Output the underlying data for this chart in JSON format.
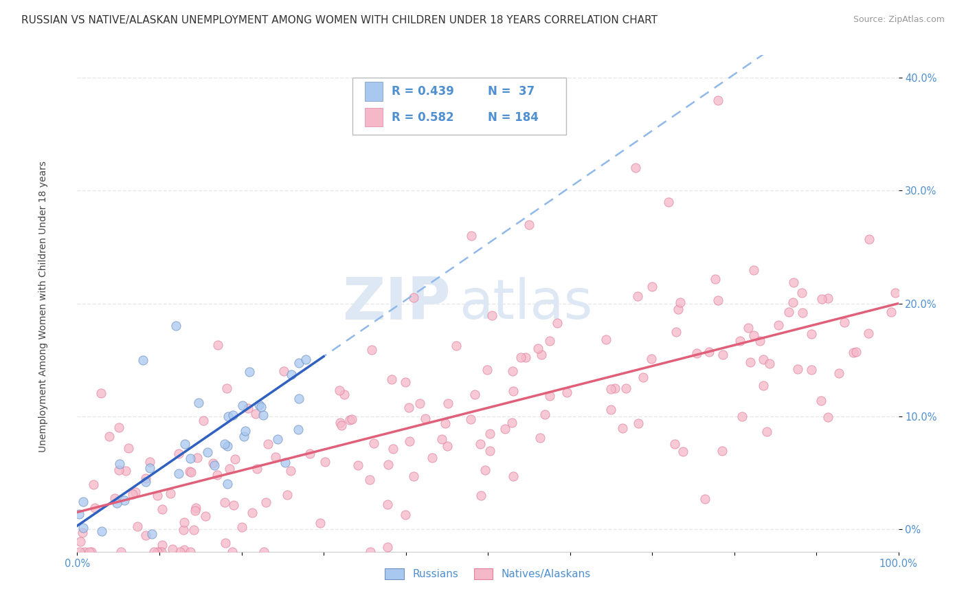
{
  "title": "RUSSIAN VS NATIVE/ALASKAN UNEMPLOYMENT AMONG WOMEN WITH CHILDREN UNDER 18 YEARS CORRELATION CHART",
  "source": "Source: ZipAtlas.com",
  "ylabel": "Unemployment Among Women with Children Under 18 years",
  "xlim": [
    0,
    100
  ],
  "ylim": [
    -2,
    42
  ],
  "yticks": [
    0,
    10,
    20,
    30,
    40
  ],
  "xticks": [
    0,
    10,
    20,
    30,
    40,
    50,
    60,
    70,
    80,
    90,
    100
  ],
  "russian_color": "#a8c8f0",
  "native_color": "#f5b8c8",
  "russian_edge_color": "#7090c0",
  "native_edge_color": "#e080a0",
  "russian_line_color": "#3060c0",
  "native_line_color": "#e0607a",
  "dashed_line_color": "#90b8e8",
  "watermark_color": "#dde8f4",
  "background_color": "#ffffff",
  "grid_color": "#e8e8e8",
  "title_fontsize": 11,
  "axis_label_fontsize": 10,
  "tick_fontsize": 10.5,
  "tick_color": "#5090d0",
  "axis_label_color": "#444444",
  "title_color": "#333333",
  "source_color": "#999999",
  "legend_text_color": "#5090d0",
  "russian_R": 0.439,
  "native_R": 0.582,
  "russian_N": 37,
  "native_N": 184,
  "watermark_zip": "ZIP",
  "watermark_atlas": "atlas"
}
